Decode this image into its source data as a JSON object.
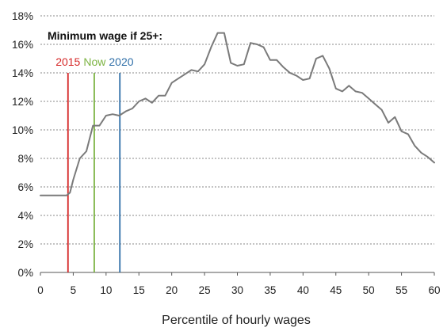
{
  "chart_data": {
    "type": "line",
    "title": "",
    "xlabel": "Percentile of hourly wages",
    "ylabel": "",
    "annotation": "Minimum wage if 25+:",
    "xlim": [
      0,
      60
    ],
    "ylim": [
      0,
      18
    ],
    "xticks": [
      0,
      5,
      10,
      15,
      20,
      25,
      30,
      35,
      40,
      45,
      50,
      55,
      60
    ],
    "xtick_labels": [
      "0",
      "5",
      "10",
      "15",
      "20",
      "25",
      "30",
      "35",
      "40",
      "45",
      "50",
      "55",
      "60"
    ],
    "yticks": [
      0,
      2,
      4,
      6,
      8,
      10,
      12,
      14,
      16,
      18
    ],
    "ytick_labels": [
      "0%",
      "2%",
      "4%",
      "6%",
      "8%",
      "10%",
      "12%",
      "14%",
      "16%",
      "18%"
    ],
    "grid": "horizontal dotted",
    "series": [
      {
        "color": "#7a7a7a",
        "x": [
          0,
          1,
          2,
          3,
          4,
          4.5,
          5,
          6,
          7,
          8,
          9,
          10,
          11,
          12,
          13,
          14,
          15,
          16,
          17,
          18,
          19,
          20,
          21,
          22,
          23,
          24,
          25,
          26,
          27,
          28,
          29,
          30,
          31,
          32,
          33,
          34,
          35,
          36,
          37,
          38,
          39,
          40,
          41,
          42,
          43,
          44,
          45,
          46,
          47,
          48,
          49,
          50,
          51,
          52,
          53,
          54,
          55,
          56,
          57,
          58,
          59,
          60
        ],
        "y": [
          5.4,
          5.4,
          5.4,
          5.4,
          5.4,
          5.6,
          6.5,
          8.0,
          8.5,
          10.3,
          10.3,
          11.0,
          11.1,
          11.0,
          11.3,
          11.5,
          12.0,
          12.2,
          11.9,
          12.4,
          12.4,
          13.3,
          13.6,
          13.9,
          14.2,
          14.1,
          14.6,
          15.8,
          16.8,
          16.8,
          14.7,
          14.5,
          14.6,
          16.1,
          16.0,
          15.8,
          14.9,
          14.9,
          14.4,
          14.0,
          13.8,
          13.5,
          13.6,
          15.0,
          15.2,
          14.3,
          12.9,
          12.7,
          13.1,
          12.7,
          12.6,
          12.2,
          11.8,
          11.4,
          10.5,
          10.9,
          9.9,
          9.7,
          8.9,
          8.4,
          8.1,
          7.7
        ]
      }
    ],
    "markers": [
      {
        "label": "2015",
        "x": 4.2,
        "y": 14,
        "color": "#d62828"
      },
      {
        "label": "Now",
        "x": 8.2,
        "y": 14,
        "color": "#7cb342"
      },
      {
        "label": "2020",
        "x": 12.1,
        "y": 14,
        "color": "#2f6fa8"
      }
    ]
  }
}
